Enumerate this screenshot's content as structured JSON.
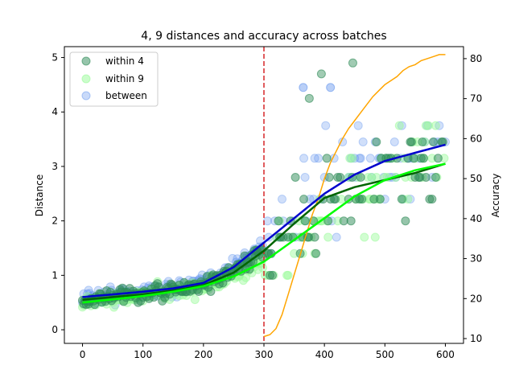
{
  "chart_data": {
    "type": "scatter",
    "title": "4, 9 distances and accuracy across batches",
    "xlabel": "",
    "ylabel": "Distance",
    "y2label": "Accuracy",
    "xlim": [
      -30,
      630
    ],
    "ylim": [
      -0.25,
      5.2
    ],
    "y2lim": [
      8.8,
      83
    ],
    "xticks": [
      "0",
      "100",
      "200",
      "300",
      "400",
      "500",
      "600"
    ],
    "xtick_values": [
      0,
      100,
      200,
      300,
      400,
      500,
      600
    ],
    "yticks": [
      "0",
      "1",
      "2",
      "3",
      "4",
      "5"
    ],
    "ytick_values": [
      0,
      1,
      2,
      3,
      4,
      5
    ],
    "y2ticks": [
      "10",
      "20",
      "30",
      "40",
      "50",
      "60",
      "70",
      "80"
    ],
    "y2tick_values": [
      10,
      20,
      30,
      40,
      50,
      60,
      70,
      80
    ],
    "grid": false,
    "legend_position": "top-left",
    "vline": {
      "x": 300,
      "color": "#d62728"
    },
    "colors": {
      "within4": "#2e8b57",
      "within9": "#98fb98",
      "between": "#6495ed",
      "trend4": "#006400",
      "trend9": "#00ff00",
      "trendBetween": "#0000cd",
      "accuracy": "#ffa500"
    },
    "series": [
      {
        "name": "within 4",
        "kind": "scatter"
      },
      {
        "name": "within 9",
        "kind": "scatter"
      },
      {
        "name": "between",
        "kind": "scatter"
      }
    ],
    "trend_lines": [
      {
        "key": "trend4",
        "points": [
          [
            0,
            0.55
          ],
          [
            50,
            0.6
          ],
          [
            100,
            0.65
          ],
          [
            150,
            0.72
          ],
          [
            200,
            0.82
          ],
          [
            250,
            1.05
          ],
          [
            300,
            1.45
          ],
          [
            350,
            1.95
          ],
          [
            400,
            2.42
          ],
          [
            450,
            2.62
          ],
          [
            500,
            2.75
          ],
          [
            550,
            2.88
          ],
          [
            600,
            3.05
          ]
        ]
      },
      {
        "key": "trend9",
        "points": [
          [
            0,
            0.5
          ],
          [
            50,
            0.56
          ],
          [
            100,
            0.62
          ],
          [
            150,
            0.7
          ],
          [
            200,
            0.8
          ],
          [
            250,
            0.98
          ],
          [
            300,
            1.25
          ],
          [
            350,
            1.65
          ],
          [
            400,
            2.05
          ],
          [
            450,
            2.45
          ],
          [
            500,
            2.75
          ],
          [
            550,
            2.93
          ],
          [
            600,
            3.05
          ]
        ]
      },
      {
        "key": "trendBetween",
        "points": [
          [
            0,
            0.6
          ],
          [
            50,
            0.65
          ],
          [
            100,
            0.7
          ],
          [
            150,
            0.76
          ],
          [
            200,
            0.86
          ],
          [
            250,
            1.15
          ],
          [
            300,
            1.6
          ],
          [
            350,
            2.05
          ],
          [
            400,
            2.5
          ],
          [
            450,
            2.85
          ],
          [
            500,
            3.1
          ],
          [
            550,
            3.25
          ],
          [
            600,
            3.4
          ]
        ]
      }
    ],
    "accuracy_line": [
      [
        300,
        10.5
      ],
      [
        310,
        11
      ],
      [
        320,
        12.5
      ],
      [
        330,
        16
      ],
      [
        340,
        21
      ],
      [
        350,
        26
      ],
      [
        360,
        31
      ],
      [
        370,
        36
      ],
      [
        380,
        41
      ],
      [
        390,
        45
      ],
      [
        400,
        50
      ],
      [
        410,
        54
      ],
      [
        420,
        57
      ],
      [
        430,
        60
      ],
      [
        440,
        62.5
      ],
      [
        450,
        64.5
      ],
      [
        460,
        66.5
      ],
      [
        470,
        68.5
      ],
      [
        480,
        70.5
      ],
      [
        490,
        72
      ],
      [
        500,
        73.5
      ],
      [
        510,
        74.5
      ],
      [
        520,
        75.5
      ],
      [
        530,
        77
      ],
      [
        540,
        78
      ],
      [
        550,
        78.5
      ],
      [
        560,
        79.5
      ],
      [
        570,
        80
      ],
      [
        580,
        80.5
      ],
      [
        590,
        81
      ],
      [
        600,
        81
      ]
    ]
  }
}
